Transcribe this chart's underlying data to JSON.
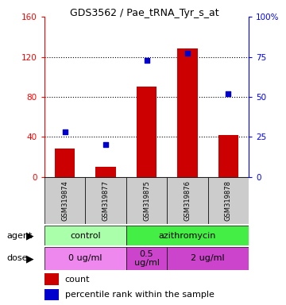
{
  "title": "GDS3562 / Pae_tRNA_Tyr_s_at",
  "samples": [
    "GSM319874",
    "GSM319877",
    "GSM319875",
    "GSM319876",
    "GSM319878"
  ],
  "counts": [
    28,
    10,
    90,
    128,
    42
  ],
  "percentiles": [
    28,
    20,
    73,
    77,
    52
  ],
  "ylim_left": [
    0,
    160
  ],
  "ylim_right": [
    0,
    100
  ],
  "yticks_left": [
    0,
    40,
    80,
    120,
    160
  ],
  "yticks_right": [
    0,
    25,
    50,
    75,
    100
  ],
  "ytick_labels_right": [
    "0",
    "25",
    "50",
    "75",
    "100%"
  ],
  "bar_color": "#cc0000",
  "dot_color": "#0000cc",
  "agent_row": [
    {
      "label": "control",
      "span": [
        0,
        2
      ],
      "color": "#aaeea a"
    },
    {
      "label": "azithromycin",
      "span": [
        2,
        5
      ],
      "color": "#44dd44"
    }
  ],
  "agent_colors": [
    "#aaffaa",
    "#44ee44"
  ],
  "dose_colors": [
    "#ee88ee",
    "#cc44cc"
  ],
  "dose_row": [
    {
      "label": "0 ug/ml",
      "span": [
        0,
        2
      ],
      "color": "#ee88ee"
    },
    {
      "label": "0.5\nug/ml",
      "span": [
        2,
        3
      ],
      "color": "#cc44cc"
    },
    {
      "label": "2 ug/ml",
      "span": [
        3,
        5
      ],
      "color": "#cc44cc"
    }
  ],
  "legend_count_label": "count",
  "legend_pct_label": "percentile rank within the sample",
  "xlabel_agent": "agent",
  "xlabel_dose": "dose",
  "background_color": "#ffffff"
}
